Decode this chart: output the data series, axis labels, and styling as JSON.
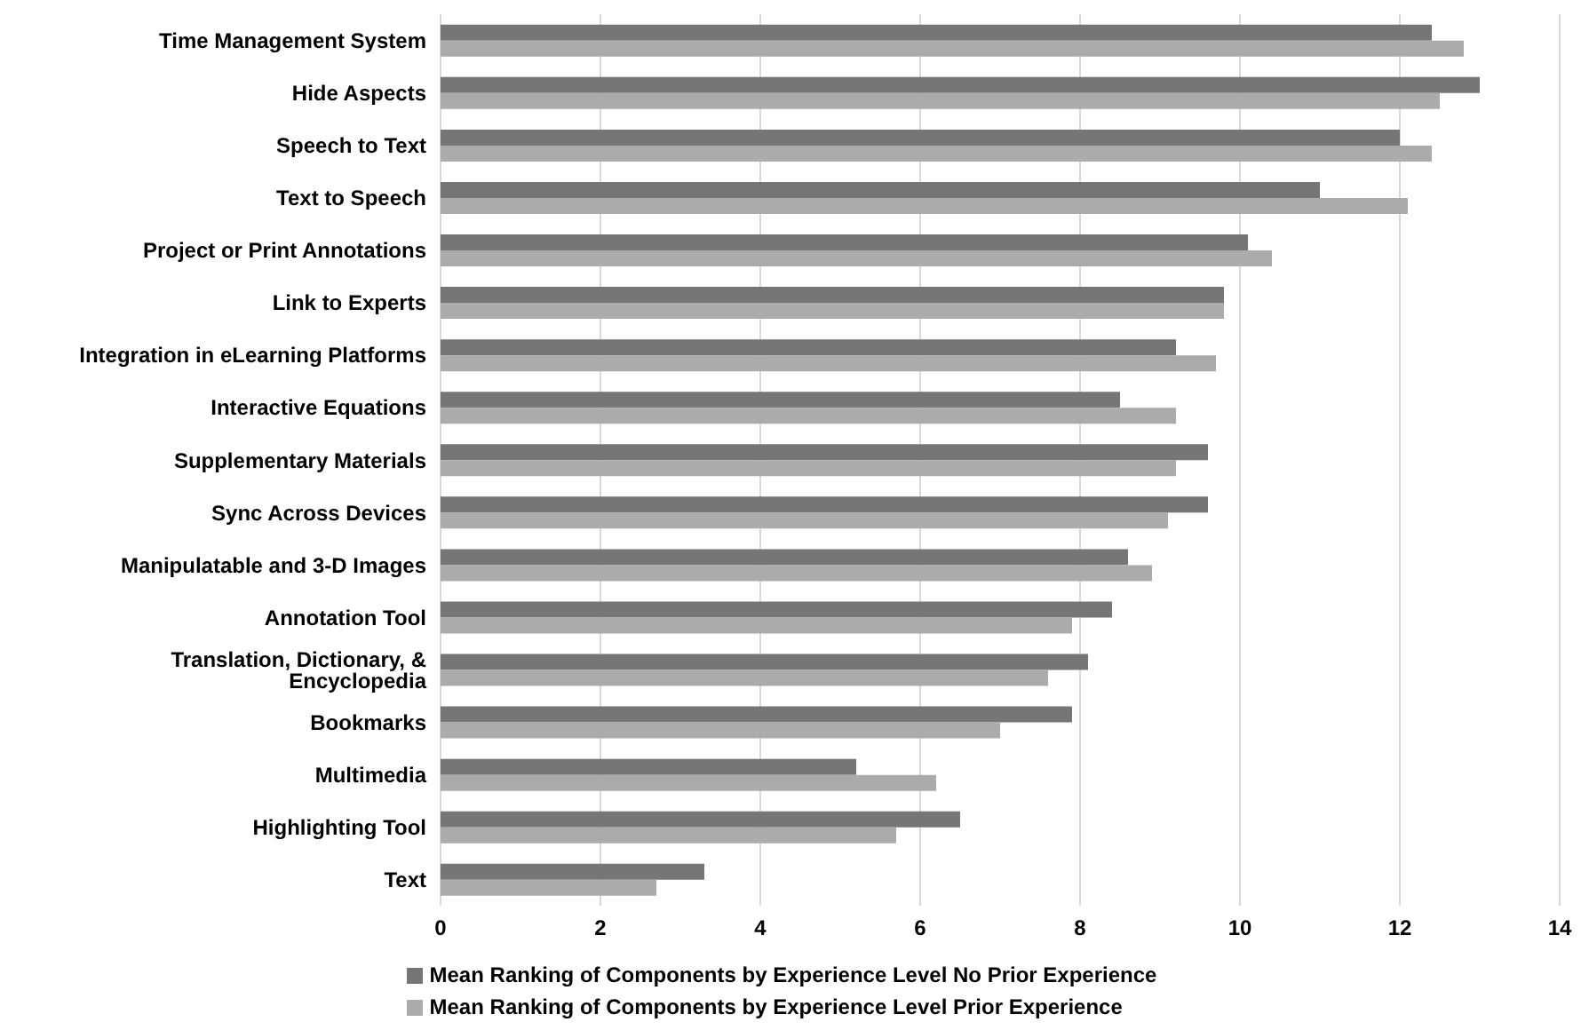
{
  "chart_data": {
    "type": "bar",
    "orientation": "horizontal",
    "categories": [
      "Time Management System",
      "Hide Aspects",
      "Speech to Text",
      "Text to Speech",
      "Project or Print Annotations",
      "Link to Experts",
      "Integration in eLearning Platforms",
      "Interactive Equations",
      "Supplementary Materials",
      "Sync Across Devices",
      "Manipulatable and 3-D Images",
      "Annotation Tool",
      "Translation, Dictionary, & Encyclopedia",
      "Bookmarks",
      "Multimedia",
      "Highlighting Tool",
      "Text"
    ],
    "series": [
      {
        "name": "Mean Ranking of Components by Experience Level No Prior Experience",
        "color": "#767676",
        "values": [
          12.4,
          13.0,
          12.0,
          11.0,
          10.1,
          9.8,
          9.2,
          8.5,
          9.6,
          9.6,
          8.6,
          8.4,
          8.1,
          7.9,
          5.2,
          6.5,
          3.3
        ]
      },
      {
        "name": "Mean Ranking of Components by Experience Level Prior Experience",
        "color": "#ababab",
        "values": [
          12.8,
          12.5,
          12.4,
          12.1,
          10.4,
          9.8,
          9.7,
          9.2,
          9.2,
          9.1,
          8.9,
          7.9,
          7.6,
          7.0,
          6.2,
          5.7,
          2.7
        ]
      }
    ],
    "xlim": [
      0,
      14
    ],
    "xticks": [
      0,
      2,
      4,
      6,
      8,
      10,
      12,
      14
    ],
    "grid": "x",
    "legend": "bottom"
  }
}
